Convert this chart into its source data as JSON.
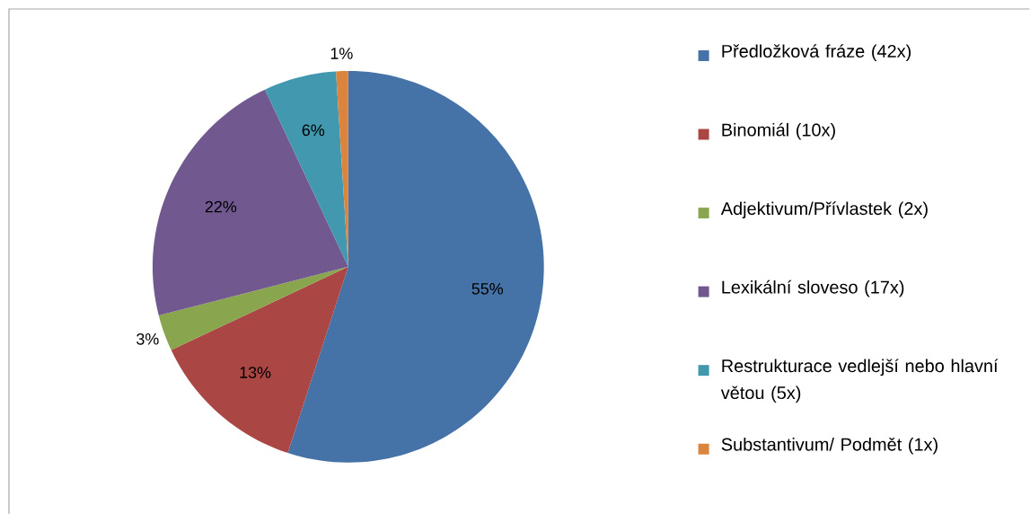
{
  "chart_data": {
    "type": "pie",
    "categories": [
      "Předložková fráze (42x)",
      "Binomiál (10x)",
      "Adjektivum/Přívlastek (2x)",
      "Lexikální sloveso (17x)",
      "Restrukturace vedlejší nebo hlavní větou (5x)",
      "Substantivum/ Podmět (1x)"
    ],
    "values": [
      55,
      13,
      3,
      22,
      6,
      1
    ],
    "colors": [
      "#4572a7",
      "#aa4643",
      "#89a54e",
      "#71588f",
      "#4198af",
      "#db843d"
    ],
    "value_labels": [
      "55%",
      "13%",
      "3%",
      "22%",
      "6%",
      "1%"
    ],
    "legend": "right"
  }
}
